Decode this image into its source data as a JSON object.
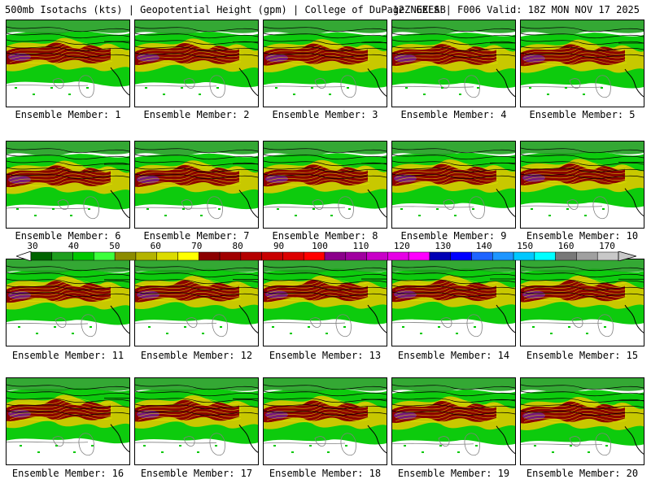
{
  "header": {
    "title_left": "500mb Isotachs (kts) | Geopotential Height (gpm) | College of DuPage NEXLAB",
    "title_right": "12Z GEFS | F006 Valid: 18Z MON NOV 17 2025"
  },
  "members": [
    "Ensemble Member: 1",
    "Ensemble Member: 2",
    "Ensemble Member: 3",
    "Ensemble Member: 4",
    "Ensemble Member: 5",
    "Ensemble Member: 6",
    "Ensemble Member: 7",
    "Ensemble Member: 8",
    "Ensemble Member: 9",
    "Ensemble Member: 10",
    "Ensemble Member: 11",
    "Ensemble Member: 12",
    "Ensemble Member: 13",
    "Ensemble Member: 14",
    "Ensemble Member: 15",
    "Ensemble Member: 16",
    "Ensemble Member: 17",
    "Ensemble Member: 18",
    "Ensemble Member: 19",
    "Ensemble Member: 20"
  ],
  "colorbar": {
    "labels": [
      "30",
      "40",
      "50",
      "60",
      "70",
      "80",
      "90",
      "100",
      "110",
      "120",
      "130",
      "140",
      "150",
      "160",
      "170"
    ],
    "colors": [
      "#006400",
      "#1e9e1e",
      "#00c800",
      "#3cff3c",
      "#8c8c00",
      "#b4b400",
      "#dcdc00",
      "#ffff00",
      "#8b0000",
      "#a00000",
      "#b40000",
      "#c80000",
      "#dc0000",
      "#ff0000",
      "#8b008b",
      "#a000a0",
      "#c800c8",
      "#e600e6",
      "#ff00ff",
      "#0000b4",
      "#0000ff",
      "#1e64ff",
      "#1e96ff",
      "#00c8ff",
      "#00ffff",
      "#787878",
      "#a0a0a0",
      "#c8c8c8"
    ]
  },
  "map_colors": {
    "weak": "#1e9e1e",
    "mid": "#00c800",
    "yellow": "#c8c800",
    "red": "#8b0000",
    "purple": "#7a1a7a",
    "contour": "#808080",
    "border": "#000000"
  }
}
